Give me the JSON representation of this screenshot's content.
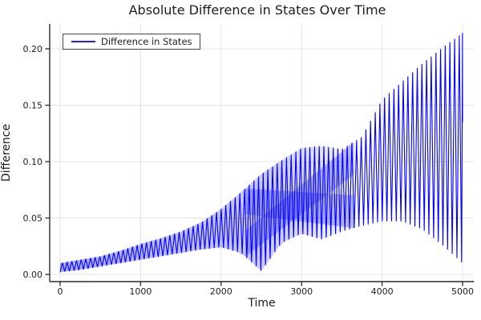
{
  "title": "Absolute Difference in States Over Time",
  "legend": {
    "label": "Difference in States"
  },
  "axes": {
    "x": {
      "label": "Time",
      "tick_labels": [
        "0",
        "1000",
        "2000",
        "3000",
        "4000",
        "5000"
      ]
    },
    "y": {
      "label": "Difference",
      "tick_labels": [
        "0.00",
        "0.05",
        "0.10",
        "0.15",
        "0.20"
      ]
    }
  },
  "colors": {
    "line": "#0000ff",
    "grid": "#e4e4e4",
    "spine": "#2a2a2e",
    "text": "#1d1d21",
    "background": "#ffffff",
    "legend_border": "#45454a"
  },
  "chart_data": {
    "type": "line",
    "title": "Absolute Difference in States Over Time",
    "xlabel": "Time",
    "ylabel": "Difference",
    "legend_position": "top-left",
    "grid": true,
    "x_ticks": [
      0,
      1000,
      2000,
      3000,
      4000,
      5000
    ],
    "y_ticks": [
      0.0,
      0.05,
      0.1,
      0.15,
      0.2
    ],
    "xlim": [
      -130,
      5140
    ],
    "ylim": [
      -0.006,
      0.222
    ],
    "series": [
      {
        "name": "Difference in States",
        "color": "#0000ff",
        "description": "Rapidly oscillating absolute difference; values sweep between lower and upper envelopes with a beat node near t=2500 and growing divergence toward t=5000.",
        "stroke_step_t": 29,
        "envelope_t": [
          0,
          250,
          500,
          750,
          1000,
          1250,
          1500,
          1750,
          2000,
          2250,
          2500,
          2750,
          3000,
          3250,
          3500,
          3750,
          4000,
          4250,
          4500,
          4750,
          5000
        ],
        "envelope_upper": [
          0.01,
          0.013,
          0.016,
          0.021,
          0.027,
          0.032,
          0.038,
          0.046,
          0.058,
          0.073,
          0.089,
          0.101,
          0.112,
          0.114,
          0.111,
          0.122,
          0.155,
          0.171,
          0.187,
          0.201,
          0.214
        ],
        "envelope_lower": [
          0.002,
          0.004,
          0.007,
          0.01,
          0.013,
          0.016,
          0.019,
          0.022,
          0.024,
          0.019,
          0.003,
          0.028,
          0.036,
          0.031,
          0.038,
          0.043,
          0.047,
          0.047,
          0.04,
          0.026,
          0.01
        ],
        "end_t": 5000,
        "end_value": 0.135,
        "max_value": 0.214,
        "interference_band_t": [
          2300,
          3650
        ]
      }
    ]
  }
}
